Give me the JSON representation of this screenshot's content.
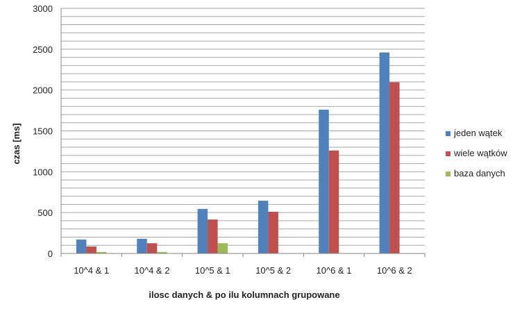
{
  "chart_data": {
    "type": "bar",
    "title": "",
    "xlabel": "ilosc danych & po ilu kolumnach grupowane",
    "ylabel": "czas [ms]",
    "ylim": [
      0,
      3000
    ],
    "yticks": [
      0,
      500,
      1000,
      1500,
      2000,
      2500,
      3000
    ],
    "grid": true,
    "legend_position": "right",
    "categories": [
      "10^4 & 1",
      "10^4 & 2",
      "10^5 & 1",
      "10^5 & 2",
      "10^6 & 1",
      "10^6 & 2"
    ],
    "series": [
      {
        "name": "jeden wątek",
        "color": "#4f81bd",
        "values": [
          170,
          180,
          545,
          645,
          1760,
          2460
        ]
      },
      {
        "name": "wiele wątków",
        "color": "#c0504d",
        "values": [
          85,
          125,
          415,
          510,
          1260,
          2095
        ]
      },
      {
        "name": "baza danych",
        "color": "#9bbb59",
        "values": [
          18,
          18,
          125,
          0,
          0,
          0
        ]
      }
    ]
  }
}
